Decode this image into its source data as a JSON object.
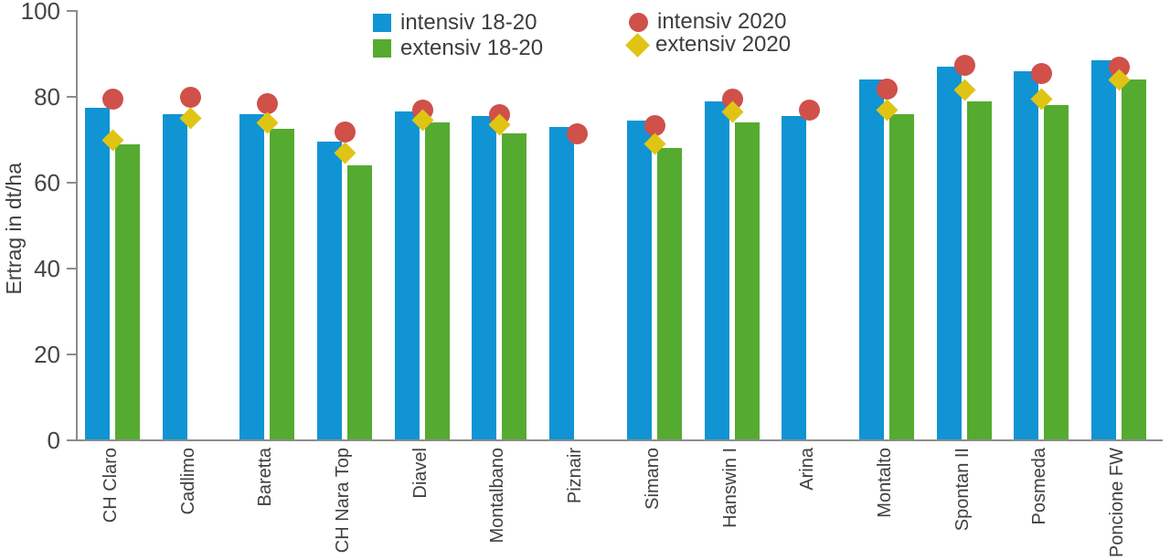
{
  "chart_data": {
    "type": "bar",
    "title": "",
    "ylabel": "Ertrag in dt/ha",
    "xlabel": "",
    "ylim": [
      0,
      100
    ],
    "yticks": [
      0,
      20,
      40,
      60,
      80,
      100
    ],
    "grid": false,
    "legend_position": "top-center",
    "categories": [
      "CH Claro",
      "Cadlimo",
      "Baretta",
      "CH Nara Top",
      "Diavel",
      "Montalbano",
      "Piznair",
      "Simano",
      "Hanswin I",
      "Arina",
      "Montalto",
      "Spontan II",
      "Posmeda",
      "Poncione FW"
    ],
    "series": [
      {
        "name": "intensiv 18-20",
        "type": "bar",
        "marker": "square",
        "color": "#1094d3",
        "values": [
          77.5,
          76,
          76,
          69.5,
          76.5,
          75.5,
          73,
          74.5,
          79,
          75.5,
          84,
          87,
          86,
          88.5
        ]
      },
      {
        "name": "extensiv 18-20",
        "type": "bar",
        "marker": "square",
        "color": "#55ab30",
        "values": [
          69,
          null,
          72.5,
          64,
          74,
          71.5,
          null,
          68,
          74,
          null,
          76,
          79,
          78,
          84
        ]
      },
      {
        "name": "intensiv 2020",
        "type": "scatter",
        "marker": "circle",
        "color": "#d0504a",
        "values": [
          79.5,
          80,
          78.5,
          72,
          77,
          76,
          71.5,
          73.5,
          79.5,
          77,
          82,
          87.5,
          85.5,
          87
        ]
      },
      {
        "name": "extensiv 2020",
        "type": "scatter",
        "marker": "diamond",
        "color": "#e0c414",
        "values": [
          70,
          75,
          74,
          67,
          74.5,
          73.5,
          null,
          69,
          76.5,
          null,
          77,
          81.5,
          79.5,
          84
        ]
      }
    ],
    "axis_color": "#8c8c8c",
    "text_color": "#404040"
  }
}
